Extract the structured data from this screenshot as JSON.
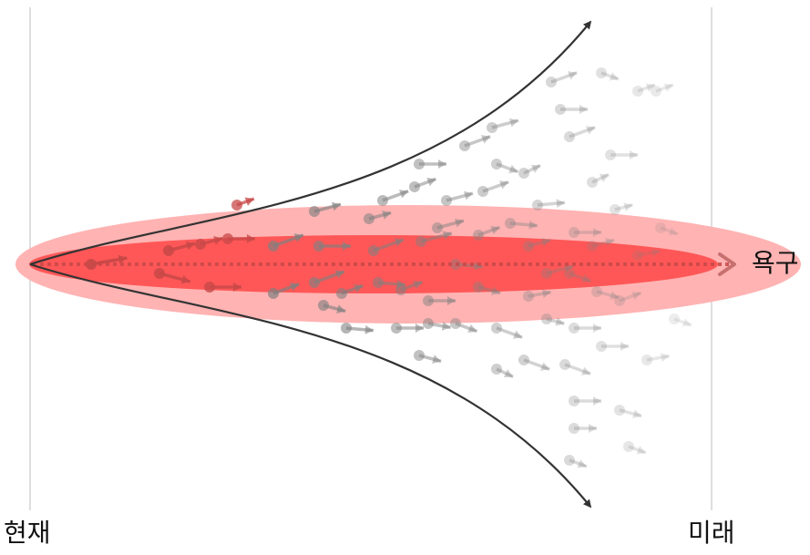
{
  "labels": {
    "now": "현재",
    "future": "미래",
    "desire": "욕구"
  },
  "colors": {
    "outer_ellipse": "#ffb3b3",
    "inner_ellipse": "#ff5757",
    "desire_arrow": "#c84848",
    "cone_lines": "#333333",
    "particles": "#808080",
    "timeline": "#bdbdbd",
    "background": "#ffffff"
  }
}
